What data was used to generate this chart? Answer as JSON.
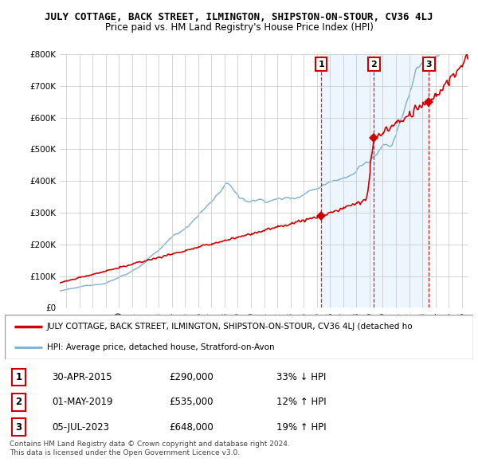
{
  "title": "JULY COTTAGE, BACK STREET, ILMINGTON, SHIPSTON-ON-STOUR, CV36 4LJ",
  "subtitle": "Price paid vs. HM Land Registry's House Price Index (HPI)",
  "ylim": [
    0,
    800000
  ],
  "xlim_start": 1995.5,
  "xlim_end": 2026.5,
  "sale_dates": [
    2015.33,
    2019.33,
    2023.5
  ],
  "sale_prices": [
    290000,
    535000,
    648000
  ],
  "sale_labels": [
    "1",
    "2",
    "3"
  ],
  "sale_date_labels": [
    "30-APR-2015",
    "01-MAY-2019",
    "05-JUL-2023"
  ],
  "sale_price_labels": [
    "£290,000",
    "£535,000",
    "£648,000"
  ],
  "sale_hpi_labels": [
    "33% ↓ HPI",
    "12% ↑ HPI",
    "19% ↑ HPI"
  ],
  "hpi_color": "#7bafd4",
  "price_color": "#cc0000",
  "vline_color": "#cc0000",
  "shade_color": "#ddeeff",
  "background_color": "#ffffff",
  "grid_color": "#cccccc",
  "legend_line1": "JULY COTTAGE, BACK STREET, ILMINGTON, SHIPSTON-ON-STOUR, CV36 4LJ (detached ho",
  "legend_line2": "HPI: Average price, detached house, Stratford-on-Avon",
  "footer1": "Contains HM Land Registry data © Crown copyright and database right 2024.",
  "footer2": "This data is licensed under the Open Government Licence v3.0."
}
